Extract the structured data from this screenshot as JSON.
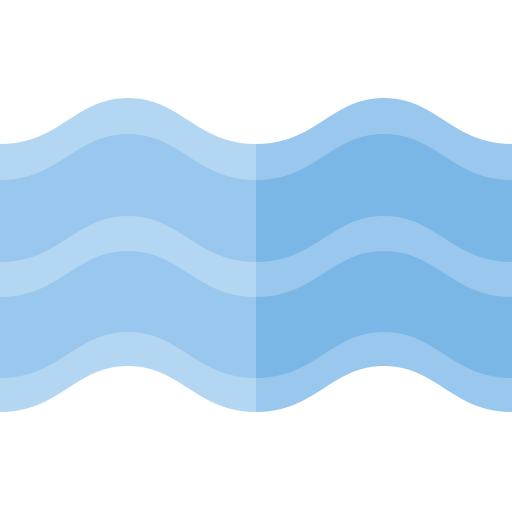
{
  "icon": {
    "name": "water-waves-icon",
    "colors": {
      "light_left": "#b3d6f2",
      "mid_left": "#99c7ee",
      "light_right": "#99c7ee",
      "dark_right": "#7ab7e6"
    }
  }
}
